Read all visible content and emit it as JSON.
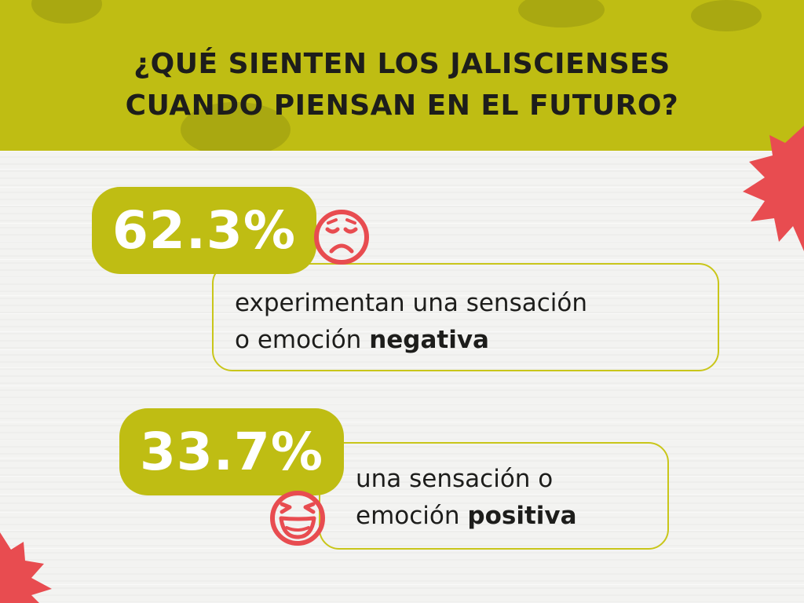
{
  "header": {
    "title_line1": "¿QUÉ SIENTEN LOS JALISCIENSES",
    "title_line2": "CUANDO PIENSAN EN EL FUTURO?"
  },
  "stats": [
    {
      "percent": "62.3%",
      "text_line1": "experimentan una sensación",
      "text_line2_prefix": "o emoción ",
      "text_emphasis": "negativa",
      "icon": "sad-face-icon"
    },
    {
      "percent": "33.7%",
      "text_line1": "una sensación o",
      "text_line2_prefix": "emoción ",
      "text_emphasis": "positiva",
      "icon": "laughing-face-icon"
    }
  ],
  "colors": {
    "accent": "#bfbd13",
    "burst": "#e84c50",
    "text": "#1d1d1b",
    "background": "#f3f3f1"
  }
}
